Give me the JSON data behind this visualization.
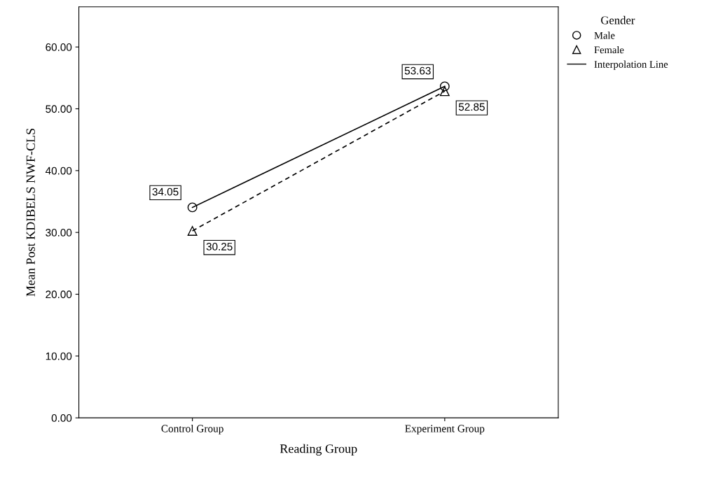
{
  "chart_data": {
    "type": "line",
    "xlabel": "Reading Group",
    "ylabel": "Mean Post KDIBELS NWF-CLS",
    "categories": [
      "Control Group",
      "Experiment Group"
    ],
    "series": [
      {
        "name": "Male",
        "color": "#000000",
        "values": [
          34.05,
          53.63
        ],
        "marker": "circle",
        "line_style": "solid"
      },
      {
        "name": "Female",
        "color": "#000000",
        "values": [
          30.25,
          52.85
        ],
        "marker": "triangle",
        "line_style": "dashed"
      }
    ],
    "ylim": [
      0,
      66.5
    ],
    "yticks": [
      {
        "value": 0,
        "label": "0.00"
      },
      {
        "value": 10,
        "label": "10.00"
      },
      {
        "value": 20,
        "label": "20.00"
      },
      {
        "value": 30,
        "label": "30.00"
      },
      {
        "value": 40,
        "label": "40.00"
      },
      {
        "value": 50,
        "label": "50.00"
      },
      {
        "value": 60,
        "label": "60.00"
      }
    ],
    "legend_title": "Gender",
    "legend": "top right",
    "annotations": [
      "Interpolation Line"
    ],
    "data_labels": true,
    "grid": false
  }
}
